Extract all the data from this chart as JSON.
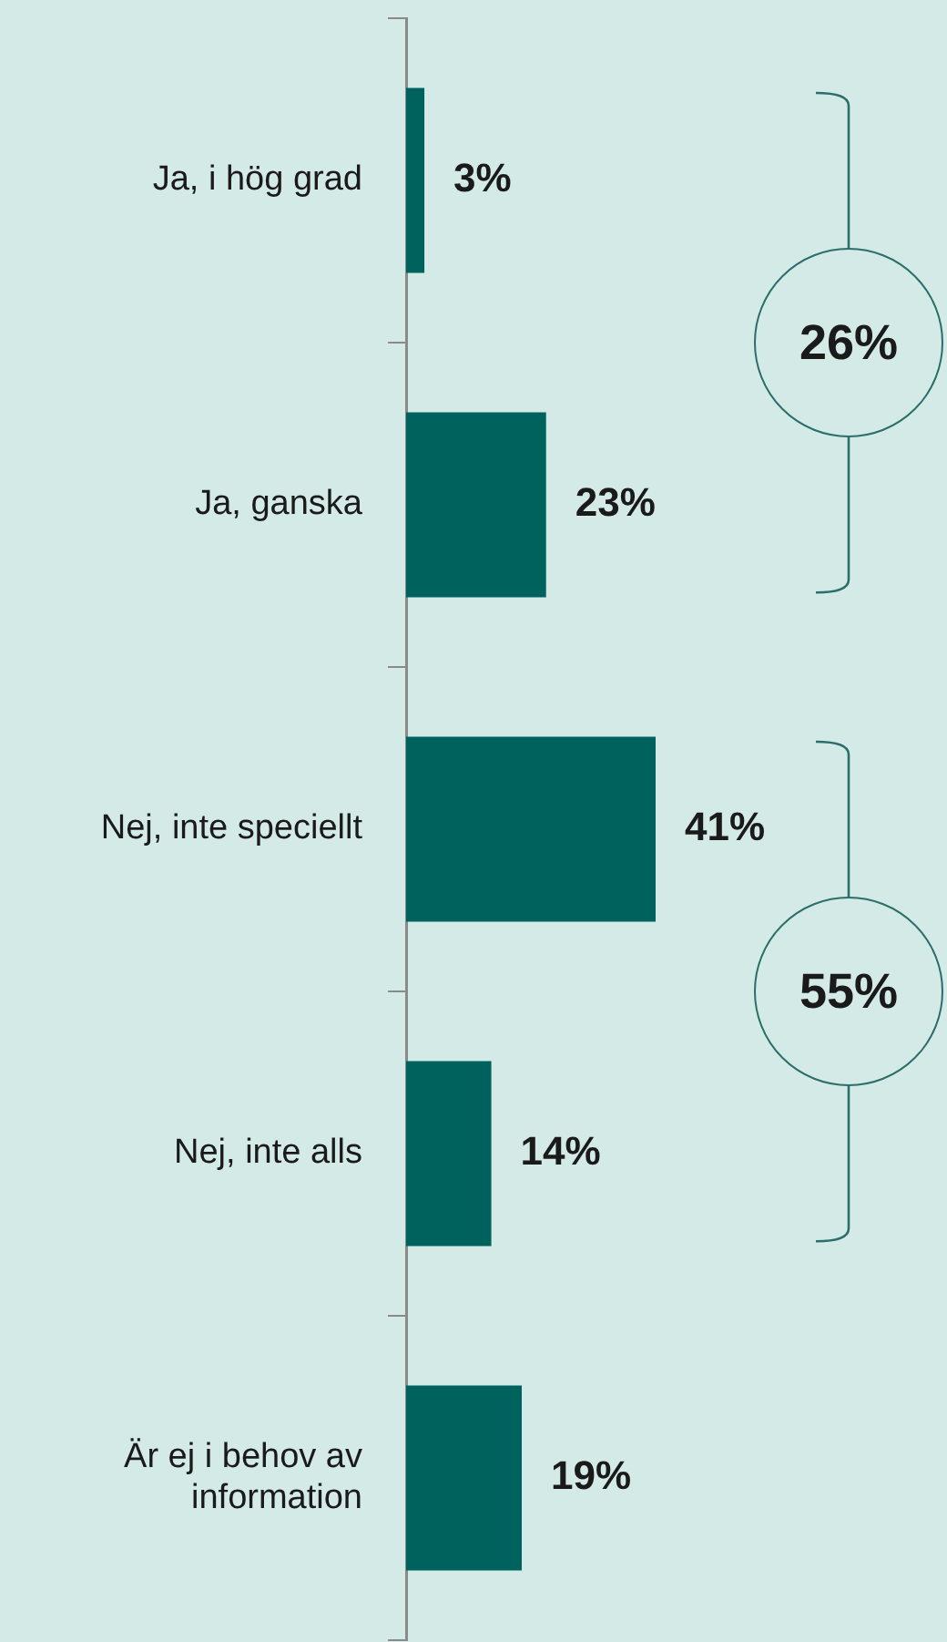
{
  "chart_data": {
    "type": "bar",
    "orientation": "horizontal",
    "categories": [
      "Ja, i hög grad",
      "Ja, ganska",
      "Nej, inte speciellt",
      "Nej, inte alls",
      "Är ej i behov av information"
    ],
    "values": [
      3,
      23,
      41,
      14,
      19
    ],
    "value_labels": [
      "3%",
      "23%",
      "41%",
      "14%",
      "19%"
    ],
    "color": "#00625d",
    "grid": false,
    "legend": false,
    "tick_labels": "y",
    "annotations": [
      "26%",
      "55%"
    ]
  }
}
